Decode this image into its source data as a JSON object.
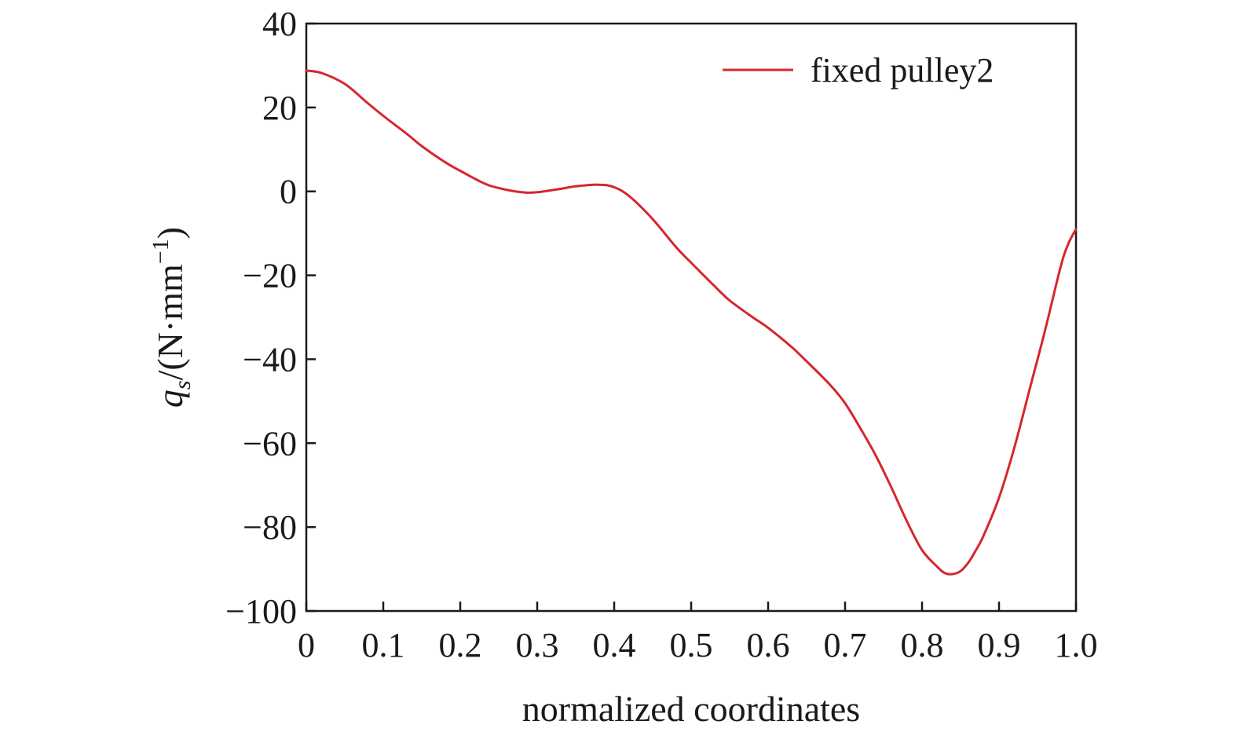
{
  "chart_data": {
    "type": "line",
    "xlabel": "normalized coordinates",
    "ylabel": {
      "symbol": "q",
      "subscript": "s",
      "unit_open": "/(N·mm",
      "unit_exponent": "−1",
      "unit_close": ")"
    },
    "xlim": [
      0,
      1.0
    ],
    "ylim": [
      -100,
      40
    ],
    "grid": false,
    "legend_position": "top-right",
    "x_ticks": [
      0,
      0.1,
      0.2,
      0.3,
      0.4,
      0.5,
      0.6,
      0.7,
      0.8,
      0.9,
      1.0
    ],
    "x_tick_labels": [
      "0",
      "0.1",
      "0.2",
      "0.3",
      "0.4",
      "0.5",
      "0.6",
      "0.7",
      "0.8",
      "0.9",
      "1.0"
    ],
    "y_ticks": [
      40,
      20,
      0,
      -20,
      -40,
      -60,
      -80,
      -100
    ],
    "y_tick_labels": [
      "40",
      "20",
      "0",
      "−20",
      "−40",
      "−60",
      "−80",
      "−100"
    ],
    "series": [
      {
        "name": "fixed pulley2",
        "color": "#d7262e",
        "x": [
          0,
          0.02,
          0.05,
          0.08,
          0.1,
          0.13,
          0.15,
          0.18,
          0.2,
          0.23,
          0.25,
          0.28,
          0.3,
          0.33,
          0.35,
          0.38,
          0.4,
          0.42,
          0.45,
          0.48,
          0.5,
          0.53,
          0.55,
          0.58,
          0.6,
          0.63,
          0.65,
          0.68,
          0.7,
          0.72,
          0.74,
          0.76,
          0.78,
          0.8,
          0.82,
          0.83,
          0.84,
          0.85,
          0.86,
          0.87,
          0.88,
          0.9,
          0.92,
          0.94,
          0.96,
          0.98,
          0.99,
          1.0
        ],
        "y": [
          28.8,
          28.2,
          25.6,
          21.0,
          18.0,
          13.8,
          10.8,
          7.0,
          4.9,
          2.0,
          0.8,
          -0.2,
          -0.2,
          0.6,
          1.2,
          1.6,
          1.0,
          -1.2,
          -6.6,
          -13.2,
          -17.0,
          -22.5,
          -26.0,
          -30.0,
          -32.5,
          -37.0,
          -40.5,
          -46.0,
          -50.5,
          -56.5,
          -63.0,
          -70.5,
          -78.5,
          -85.5,
          -89.5,
          -91.0,
          -91.2,
          -90.5,
          -88.5,
          -85.5,
          -82.0,
          -73.0,
          -61.0,
          -47.0,
          -33.0,
          -18.0,
          -12.5,
          -9.0
        ]
      }
    ]
  }
}
